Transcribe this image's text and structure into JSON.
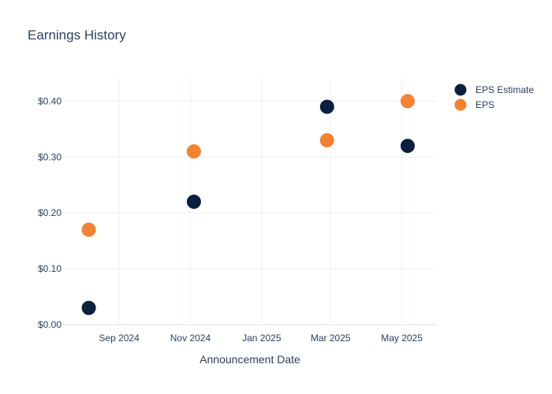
{
  "chart_data": {
    "type": "scatter",
    "title": "Earnings History",
    "xlabel": "Announcement Date",
    "ylabel": "",
    "x_tick_labels": [
      "Sep 2024",
      "Nov 2024",
      "Jan 2025",
      "Mar 2025",
      "May 2025"
    ],
    "x_tick_dates": [
      "2024-09-01",
      "2024-11-01",
      "2025-01-01",
      "2025-03-01",
      "2025-05-01"
    ],
    "xlim": [
      "2024-07-15",
      "2025-05-31"
    ],
    "y_tick_labels": [
      "$0.00",
      "$0.10",
      "$0.20",
      "$0.30",
      "$0.40"
    ],
    "y_tick_values": [
      0,
      0.1,
      0.2,
      0.3,
      0.4
    ],
    "ylim": [
      0,
      0.44
    ],
    "grid": true,
    "legend_position": "top-right",
    "x": [
      "2024-08-06",
      "2024-11-04",
      "2025-02-26",
      "2025-05-06"
    ],
    "series": [
      {
        "name": "EPS Estimate",
        "color": "#0b1f3f",
        "values": [
          0.03,
          0.22,
          0.39,
          0.32
        ]
      },
      {
        "name": "EPS",
        "color": "#f58232",
        "values": [
          0.17,
          0.31,
          0.33,
          0.4
        ]
      }
    ]
  }
}
